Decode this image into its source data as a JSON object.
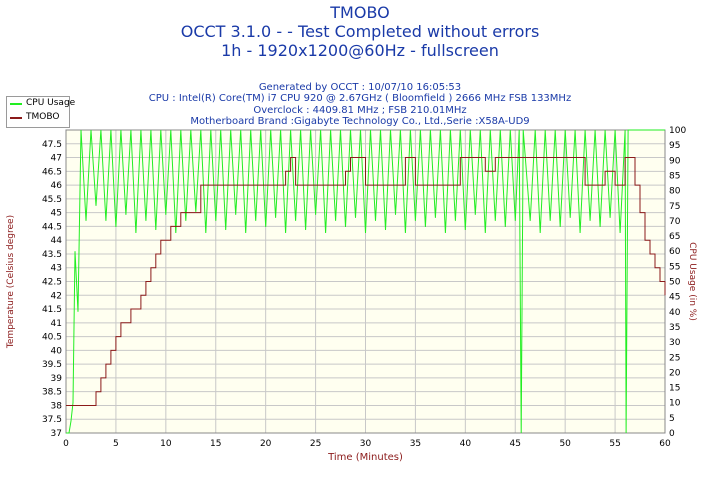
{
  "header": {
    "title": "TMOBO",
    "subtitle": "OCCT 3.1.0 -  - Test Completed without errors",
    "mode": "1h - 1920x1200@60Hz - fullscreen",
    "generated": "Generated by OCCT : 10/07/10 16:05:53",
    "cpu": "CPU : Intel(R) Core(TM) i7 CPU 920 @ 2.67GHz ( Bloomfield ) 2666 MHz FSB 133MHz",
    "overclock": "Overclock : 4409.81 MHz ; FSB 210.01MHz",
    "motherboard": "Motherboard Brand :Gigabyte Technology Co., Ltd.,Serie :X58A-UD9"
  },
  "colors": {
    "header_text": "#1a3aa8",
    "plot_bg": "#fffff0",
    "cpu_line": "#22ee22",
    "temp_line": "#8b1a1a",
    "left_axis": "#8b1a1a",
    "right_axis": "#8b1a1a"
  },
  "chart_data": {
    "type": "line",
    "title": "TMOBO",
    "xlabel": "Time (Minutes)",
    "ylabel": "Temperature (Celsius degree)",
    "y2label": "CPU Usage (in %)",
    "xlim": [
      0,
      60
    ],
    "ylim": [
      37,
      48
    ],
    "y2lim": [
      0,
      100
    ],
    "x_ticks": [
      0,
      5,
      10,
      15,
      20,
      25,
      30,
      35,
      40,
      45,
      50,
      55,
      60
    ],
    "y_ticks": [
      "37",
      "37.5",
      "38",
      "38.5",
      "39",
      "39.5",
      "40",
      "40.5",
      "41",
      "41.5",
      "42",
      "42.5",
      "43",
      "43.5",
      "44",
      "44.5",
      "45",
      "45.5",
      "46",
      "46.5",
      "47",
      "47.5"
    ],
    "y2_ticks": [
      0,
      5,
      10,
      15,
      20,
      25,
      30,
      35,
      40,
      45,
      50,
      55,
      60,
      65,
      70,
      75,
      80,
      85,
      90,
      95,
      100
    ],
    "grid": true,
    "legend_position": "top-left",
    "series": [
      {
        "name": "CPU Usage",
        "axis": "right",
        "points": [
          [
            0,
            0
          ],
          [
            0.3,
            0
          ],
          [
            0.5,
            4
          ],
          [
            0.7,
            10
          ],
          [
            0.9,
            60
          ],
          [
            1.2,
            40
          ],
          [
            1.5,
            100
          ],
          [
            2,
            70
          ],
          [
            2.5,
            100
          ],
          [
            3,
            75
          ],
          [
            3.5,
            100
          ],
          [
            4,
            70
          ],
          [
            4.5,
            100
          ],
          [
            5,
            68
          ],
          [
            5.5,
            100
          ],
          [
            6,
            72
          ],
          [
            6.5,
            100
          ],
          [
            7,
            66
          ],
          [
            7.5,
            100
          ],
          [
            8,
            70
          ],
          [
            8.5,
            100
          ],
          [
            9,
            67
          ],
          [
            9.5,
            100
          ],
          [
            10,
            72
          ],
          [
            10.5,
            100
          ],
          [
            11,
            66
          ],
          [
            11.5,
            100
          ],
          [
            12,
            70
          ],
          [
            12.5,
            100
          ],
          [
            13,
            73
          ],
          [
            13.5,
            100
          ],
          [
            14,
            66
          ],
          [
            14.5,
            100
          ],
          [
            15,
            70
          ],
          [
            15.5,
            100
          ],
          [
            16,
            67
          ],
          [
            16.5,
            100
          ],
          [
            17,
            72
          ],
          [
            17.5,
            100
          ],
          [
            18,
            66
          ],
          [
            18.5,
            100
          ],
          [
            19,
            70
          ],
          [
            19.5,
            100
          ],
          [
            20,
            68
          ],
          [
            20.5,
            100
          ],
          [
            21,
            71
          ],
          [
            21.5,
            100
          ],
          [
            22,
            66
          ],
          [
            22.5,
            100
          ],
          [
            23,
            70
          ],
          [
            23.5,
            100
          ],
          [
            24,
            67
          ],
          [
            24.5,
            100
          ],
          [
            25,
            72
          ],
          [
            25.5,
            100
          ],
          [
            26,
            66
          ],
          [
            26.5,
            100
          ],
          [
            27,
            70
          ],
          [
            27.5,
            100
          ],
          [
            28,
            68
          ],
          [
            28.5,
            100
          ],
          [
            29,
            71
          ],
          [
            29.5,
            100
          ],
          [
            30,
            66
          ],
          [
            30.5,
            100
          ],
          [
            31,
            70
          ],
          [
            31.5,
            100
          ],
          [
            32,
            67
          ],
          [
            32.5,
            100
          ],
          [
            33,
            72
          ],
          [
            33.5,
            100
          ],
          [
            34,
            66
          ],
          [
            34.5,
            100
          ],
          [
            35,
            70
          ],
          [
            35.5,
            100
          ],
          [
            36,
            68
          ],
          [
            36.5,
            100
          ],
          [
            37,
            71
          ],
          [
            37.5,
            100
          ],
          [
            38,
            66
          ],
          [
            38.5,
            100
          ],
          [
            39,
            70
          ],
          [
            39.5,
            100
          ],
          [
            40,
            67
          ],
          [
            40.5,
            100
          ],
          [
            41,
            72
          ],
          [
            41.5,
            100
          ],
          [
            42,
            66
          ],
          [
            42.5,
            100
          ],
          [
            43,
            70
          ],
          [
            43.5,
            100
          ],
          [
            44,
            68
          ],
          [
            44.5,
            100
          ],
          [
            45,
            70
          ],
          [
            45.4,
            100
          ],
          [
            45.6,
            0
          ],
          [
            45.8,
            100
          ],
          [
            46.5,
            70
          ],
          [
            47,
            100
          ],
          [
            47.5,
            66
          ],
          [
            48,
            100
          ],
          [
            48.5,
            70
          ],
          [
            49,
            100
          ],
          [
            49.5,
            68
          ],
          [
            50,
            100
          ],
          [
            50.5,
            71
          ],
          [
            51,
            100
          ],
          [
            51.5,
            66
          ],
          [
            52,
            100
          ],
          [
            52.5,
            70
          ],
          [
            53,
            100
          ],
          [
            53.5,
            68
          ],
          [
            54,
            100
          ],
          [
            54.5,
            71
          ],
          [
            55,
            100
          ],
          [
            55.5,
            66
          ],
          [
            56,
            100
          ],
          [
            56.1,
            0
          ],
          [
            56.3,
            100
          ],
          [
            57,
            100
          ],
          [
            60,
            100
          ]
        ]
      },
      {
        "name": "TMOBO",
        "axis": "left",
        "points": [
          [
            0,
            38
          ],
          [
            3,
            38
          ],
          [
            3,
            38.5
          ],
          [
            3.5,
            38.5
          ],
          [
            3.5,
            39
          ],
          [
            4,
            39
          ],
          [
            4,
            39.5
          ],
          [
            4.5,
            39.5
          ],
          [
            4.5,
            40
          ],
          [
            5,
            40
          ],
          [
            5,
            40.5
          ],
          [
            5.5,
            40.5
          ],
          [
            5.5,
            41
          ],
          [
            6.5,
            41
          ],
          [
            6.5,
            41.5
          ],
          [
            7.5,
            41.5
          ],
          [
            7.5,
            42
          ],
          [
            8,
            42
          ],
          [
            8,
            42.5
          ],
          [
            8.5,
            42.5
          ],
          [
            8.5,
            43
          ],
          [
            9,
            43
          ],
          [
            9,
            43.5
          ],
          [
            9.5,
            43.5
          ],
          [
            9.5,
            44
          ],
          [
            10.5,
            44
          ],
          [
            10.5,
            44.5
          ],
          [
            11.5,
            44.5
          ],
          [
            11.5,
            45
          ],
          [
            13.5,
            45
          ],
          [
            13.5,
            46
          ],
          [
            22,
            46
          ],
          [
            22,
            46.5
          ],
          [
            22.5,
            46.5
          ],
          [
            22.5,
            47
          ],
          [
            23,
            47
          ],
          [
            23,
            46
          ],
          [
            28,
            46
          ],
          [
            28,
            46.5
          ],
          [
            28.5,
            46.5
          ],
          [
            28.5,
            47
          ],
          [
            30,
            47
          ],
          [
            30,
            46
          ],
          [
            34,
            46
          ],
          [
            34,
            47
          ],
          [
            35,
            47
          ],
          [
            35,
            46
          ],
          [
            39.5,
            46
          ],
          [
            39.5,
            47
          ],
          [
            42,
            47
          ],
          [
            42,
            46.5
          ],
          [
            43,
            46.5
          ],
          [
            43,
            47
          ],
          [
            52,
            47
          ],
          [
            52,
            46
          ],
          [
            54,
            46
          ],
          [
            54,
            46.5
          ],
          [
            55,
            46.5
          ],
          [
            55,
            46
          ],
          [
            56,
            46
          ],
          [
            56,
            47
          ],
          [
            57,
            47
          ],
          [
            57,
            46
          ],
          [
            57.5,
            46
          ],
          [
            57.5,
            45
          ],
          [
            58,
            45
          ],
          [
            58,
            44
          ],
          [
            58.5,
            44
          ],
          [
            58.5,
            43.5
          ],
          [
            59,
            43.5
          ],
          [
            59,
            43
          ],
          [
            59.5,
            43
          ],
          [
            59.5,
            42.5
          ],
          [
            60,
            42.5
          ],
          [
            60,
            42
          ]
        ]
      }
    ]
  }
}
